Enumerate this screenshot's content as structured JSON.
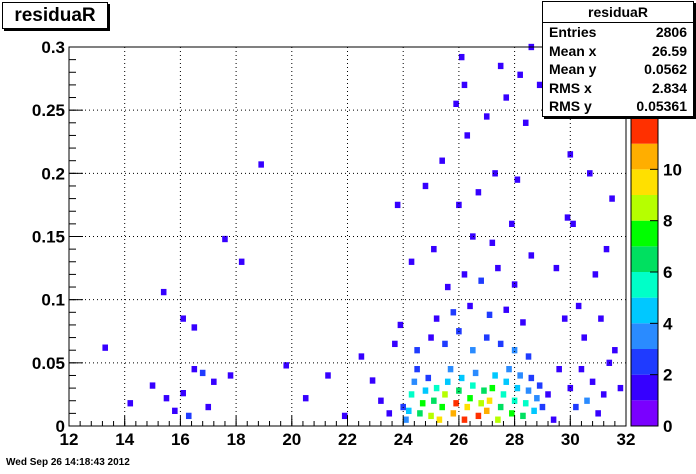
{
  "histogram_title": "residuaR",
  "stats": {
    "title": "residuaR",
    "rows": [
      {
        "label": "Entries",
        "value": "2806"
      },
      {
        "label": "Mean x",
        "value": "26.59"
      },
      {
        "label": "Mean y",
        "value": "0.0562"
      },
      {
        "label": "RMS x",
        "value": "2.834"
      },
      {
        "label": "RMS y",
        "value": "0.05361"
      }
    ]
  },
  "footer_timestamp": "Wed Sep 26 14:18:43 2012",
  "colors": {
    "frame": "#000000",
    "grid": "#000000",
    "palette": [
      "#7a00ff",
      "#3600ff",
      "#1f3bff",
      "#2a8bff",
      "#00c8ff",
      "#00ffc8",
      "#00e060",
      "#00ff00",
      "#b6ff00",
      "#ffe000",
      "#ffae00",
      "#ff3000"
    ]
  },
  "chart_data": {
    "type": "heatmap",
    "title": "residuaR",
    "xlabel": "",
    "ylabel": "",
    "xlim": [
      12,
      32
    ],
    "ylim": [
      0,
      0.3
    ],
    "zlim": [
      0,
      12
    ],
    "grid": true,
    "x_ticks": [
      "12",
      "14",
      "16",
      "18",
      "20",
      "22",
      "24",
      "26",
      "28",
      "30",
      "32"
    ],
    "y_ticks": [
      "0",
      "0.05",
      "0.1",
      "0.15",
      "0.2",
      "0.25",
      "0.3"
    ],
    "z_ticks": [
      "0",
      "2",
      "4",
      "6",
      "8",
      "10"
    ],
    "bin_width_x": 0.2,
    "bin_width_y": 0.005,
    "cells": [
      [
        13.3,
        0.062,
        1
      ],
      [
        15.0,
        0.032,
        1
      ],
      [
        15.5,
        0.022,
        1
      ],
      [
        16.1,
        0.026,
        1
      ],
      [
        16.5,
        0.045,
        1
      ],
      [
        16.8,
        0.042,
        2
      ],
      [
        17.2,
        0.035,
        1
      ],
      [
        17.8,
        0.04,
        1
      ],
      [
        15.8,
        0.012,
        1
      ],
      [
        16.3,
        0.008,
        2
      ],
      [
        17.0,
        0.015,
        1
      ],
      [
        14.2,
        0.018,
        1
      ],
      [
        15.4,
        0.106,
        1
      ],
      [
        16.1,
        0.085,
        1
      ],
      [
        16.5,
        0.078,
        1
      ],
      [
        17.6,
        0.148,
        1
      ],
      [
        18.2,
        0.13,
        1
      ],
      [
        18.9,
        0.207,
        1
      ],
      [
        19.8,
        0.048,
        1
      ],
      [
        20.5,
        0.022,
        1
      ],
      [
        21.3,
        0.04,
        1
      ],
      [
        21.9,
        0.008,
        1
      ],
      [
        22.5,
        0.055,
        1
      ],
      [
        22.9,
        0.036,
        1
      ],
      [
        23.2,
        0.02,
        1
      ],
      [
        23.5,
        0.01,
        1
      ],
      [
        23.7,
        0.065,
        1
      ],
      [
        23.9,
        0.08,
        1
      ],
      [
        24.0,
        0.015,
        2
      ],
      [
        24.1,
        0.005,
        3
      ],
      [
        24.2,
        0.012,
        4
      ],
      [
        24.3,
        0.025,
        5
      ],
      [
        24.4,
        0.035,
        3
      ],
      [
        24.5,
        0.045,
        2
      ],
      [
        24.6,
        0.01,
        6
      ],
      [
        24.7,
        0.018,
        7
      ],
      [
        24.8,
        0.028,
        4
      ],
      [
        24.9,
        0.038,
        2
      ],
      [
        25.0,
        0.008,
        8
      ],
      [
        25.1,
        0.02,
        6
      ],
      [
        25.2,
        0.03,
        5
      ],
      [
        25.3,
        0.005,
        9
      ],
      [
        25.4,
        0.015,
        7
      ],
      [
        25.5,
        0.025,
        8
      ],
      [
        25.6,
        0.035,
        4
      ],
      [
        25.7,
        0.045,
        3
      ],
      [
        25.8,
        0.01,
        10
      ],
      [
        25.9,
        0.018,
        11
      ],
      [
        26.0,
        0.028,
        6
      ],
      [
        26.1,
        0.038,
        4
      ],
      [
        26.2,
        0.005,
        12
      ],
      [
        26.3,
        0.015,
        9
      ],
      [
        26.4,
        0.022,
        7
      ],
      [
        26.5,
        0.032,
        5
      ],
      [
        26.6,
        0.042,
        3
      ],
      [
        26.7,
        0.008,
        11
      ],
      [
        26.8,
        0.018,
        8
      ],
      [
        26.9,
        0.028,
        6
      ],
      [
        27.0,
        0.012,
        10
      ],
      [
        27.1,
        0.02,
        9
      ],
      [
        27.2,
        0.03,
        7
      ],
      [
        27.3,
        0.04,
        4
      ],
      [
        27.4,
        0.005,
        8
      ],
      [
        27.5,
        0.015,
        6
      ],
      [
        27.6,
        0.025,
        5
      ],
      [
        27.7,
        0.035,
        4
      ],
      [
        27.8,
        0.045,
        3
      ],
      [
        27.9,
        0.01,
        7
      ],
      [
        28.0,
        0.02,
        5
      ],
      [
        28.1,
        0.03,
        4
      ],
      [
        28.2,
        0.04,
        3
      ],
      [
        28.3,
        0.008,
        6
      ],
      [
        28.4,
        0.018,
        5
      ],
      [
        28.5,
        0.028,
        3
      ],
      [
        28.6,
        0.038,
        2
      ],
      [
        28.7,
        0.012,
        4
      ],
      [
        28.8,
        0.022,
        3
      ],
      [
        28.9,
        0.032,
        2
      ],
      [
        29.0,
        0.015,
        2
      ],
      [
        29.2,
        0.025,
        1
      ],
      [
        29.4,
        0.005,
        1
      ],
      [
        24.5,
        0.06,
        2
      ],
      [
        25.0,
        0.07,
        1
      ],
      [
        25.5,
        0.065,
        2
      ],
      [
        26.0,
        0.075,
        2
      ],
      [
        26.5,
        0.06,
        3
      ],
      [
        27.0,
        0.07,
        2
      ],
      [
        27.5,
        0.065,
        2
      ],
      [
        28.0,
        0.06,
        3
      ],
      [
        28.5,
        0.055,
        2
      ],
      [
        25.2,
        0.085,
        1
      ],
      [
        25.8,
        0.09,
        2
      ],
      [
        26.4,
        0.095,
        1
      ],
      [
        27.1,
        0.088,
        2
      ],
      [
        27.7,
        0.092,
        1
      ],
      [
        28.3,
        0.082,
        1
      ],
      [
        25.6,
        0.11,
        1
      ],
      [
        26.2,
        0.12,
        1
      ],
      [
        26.8,
        0.115,
        2
      ],
      [
        27.4,
        0.125,
        1
      ],
      [
        28.0,
        0.112,
        1
      ],
      [
        25.1,
        0.14,
        1
      ],
      [
        26.5,
        0.15,
        1
      ],
      [
        27.2,
        0.145,
        1
      ],
      [
        27.9,
        0.16,
        1
      ],
      [
        28.6,
        0.135,
        1
      ],
      [
        26.0,
        0.175,
        1
      ],
      [
        26.7,
        0.185,
        1
      ],
      [
        27.3,
        0.2,
        1
      ],
      [
        28.1,
        0.195,
        1
      ],
      [
        25.4,
        0.21,
        1
      ],
      [
        26.3,
        0.23,
        1
      ],
      [
        27.0,
        0.245,
        1
      ],
      [
        27.7,
        0.26,
        1
      ],
      [
        28.4,
        0.24,
        1
      ],
      [
        26.2,
        0.27,
        1
      ],
      [
        27.5,
        0.285,
        1
      ],
      [
        26.1,
        0.292,
        1
      ],
      [
        28.2,
        0.278,
        1
      ],
      [
        25.9,
        0.255,
        1
      ],
      [
        24.3,
        0.13,
        1
      ],
      [
        23.8,
        0.175,
        1
      ],
      [
        24.8,
        0.19,
        1
      ],
      [
        30.0,
        0.03,
        1
      ],
      [
        30.2,
        0.015,
        2
      ],
      [
        30.4,
        0.045,
        1
      ],
      [
        30.6,
        0.02,
        3
      ],
      [
        30.8,
        0.035,
        1
      ],
      [
        31.0,
        0.01,
        1
      ],
      [
        31.2,
        0.025,
        1
      ],
      [
        31.4,
        0.05,
        1
      ],
      [
        30.5,
        0.07,
        1
      ],
      [
        31.1,
        0.085,
        1
      ],
      [
        30.3,
        0.095,
        1
      ],
      [
        30.9,
        0.12,
        1
      ],
      [
        31.3,
        0.14,
        1
      ],
      [
        30.1,
        0.16,
        1
      ],
      [
        31.5,
        0.18,
        1
      ],
      [
        30.7,
        0.2,
        1
      ],
      [
        29.6,
        0.045,
        1
      ],
      [
        29.8,
        0.085,
        1
      ],
      [
        29.5,
        0.125,
        1
      ],
      [
        29.9,
        0.165,
        1
      ],
      [
        30.0,
        0.215,
        1
      ],
      [
        31.6,
        0.06,
        1
      ],
      [
        31.8,
        0.03,
        1
      ],
      [
        29.3,
        0.25,
        1
      ],
      [
        28.9,
        0.27,
        1
      ],
      [
        28.6,
        0.3,
        1
      ]
    ]
  }
}
